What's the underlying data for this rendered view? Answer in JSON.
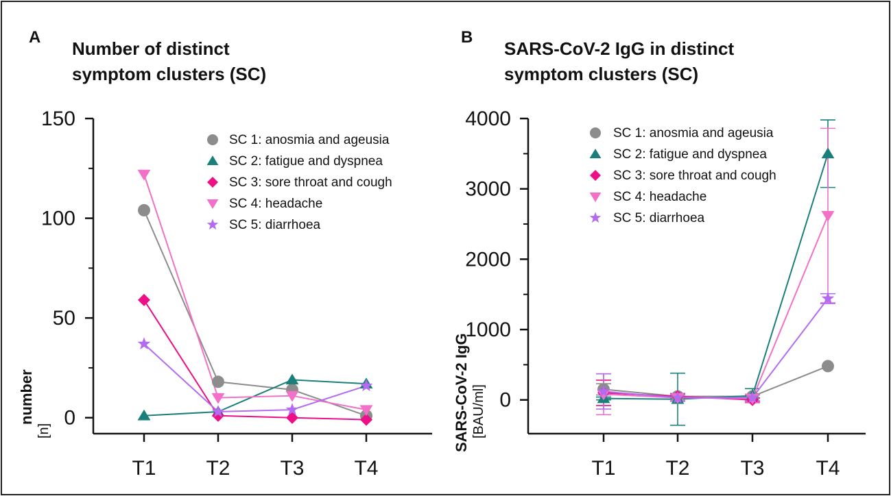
{
  "series_styles": [
    {
      "id": "sc1",
      "marker": "circle",
      "color": "#8c8c8c"
    },
    {
      "id": "sc2",
      "marker": "triangle-up",
      "color": "#1a7f7a"
    },
    {
      "id": "sc3",
      "marker": "diamond",
      "color": "#ec0f87"
    },
    {
      "id": "sc4",
      "marker": "triangle-down",
      "color": "#f270c8"
    },
    {
      "id": "sc5",
      "marker": "star",
      "color": "#b36bf0"
    }
  ],
  "chart_data": [
    {
      "panel": "A",
      "type": "line",
      "title_lines": [
        "Number of distinct",
        "symptom clusters (SC)"
      ],
      "ylabel": "number",
      "ylabel_unit": "[n]",
      "categories": [
        "T1",
        "T2",
        "T3",
        "T4"
      ],
      "ylim": [
        -8,
        150
      ],
      "yticks": [
        0,
        50,
        100,
        150
      ],
      "legend_position": "top-right",
      "grid": false,
      "series": [
        {
          "name": "SC 1:",
          "desc": "anosmia and ageusia",
          "values": [
            104,
            18,
            14,
            1
          ]
        },
        {
          "name": "SC 2:",
          "desc": "fatigue and dyspnea",
          "values": [
            1,
            3,
            19,
            17
          ]
        },
        {
          "name": "SC 3:",
          "desc": "sore throat and cough",
          "values": [
            59,
            1,
            0,
            -1
          ]
        },
        {
          "name": "SC 4:",
          "desc": "headache",
          "values": [
            122,
            10,
            11,
            4
          ]
        },
        {
          "name": "SC 5:",
          "desc": "diarrhoea",
          "values": [
            37,
            3,
            4,
            16
          ]
        }
      ]
    },
    {
      "panel": "B",
      "type": "line",
      "title_lines": [
        "SARS-CoV-2 IgG in distinct",
        "symptom clusters (SC)"
      ],
      "ylabel": "SARS-CoV-2 IgG",
      "ylabel_unit": "[BAU/ml]",
      "categories": [
        "T1",
        "T2",
        "T3",
        "T4"
      ],
      "ylim": [
        -480,
        4000
      ],
      "yticks": [
        0,
        1000,
        2000,
        3000,
        4000
      ],
      "legend_position": "top-left",
      "grid": false,
      "series": [
        {
          "name": "SC 1:",
          "desc": "anosmia and ageusia",
          "values": [
            150,
            50,
            50,
            480
          ],
          "err": [
            80,
            30,
            30,
            0
          ]
        },
        {
          "name": "SC 2:",
          "desc": "fatigue and dyspnea",
          "values": [
            20,
            10,
            60,
            3500
          ],
          "err": [
            20,
            370,
            100,
            480
          ]
        },
        {
          "name": "SC 3:",
          "desc": "sore throat and cough",
          "values": [
            100,
            50,
            0,
            null
          ],
          "err": [
            180,
            40,
            30,
            0
          ]
        },
        {
          "name": "SC 4:",
          "desc": "headache",
          "values": [
            80,
            30,
            20,
            2620
          ],
          "err": [
            290,
            40,
            60,
            1240
          ]
        },
        {
          "name": "SC 5:",
          "desc": "diarrhoea",
          "values": [
            120,
            30,
            30,
            1440
          ],
          "err": [
            250,
            50,
            40,
            70
          ]
        }
      ]
    }
  ]
}
